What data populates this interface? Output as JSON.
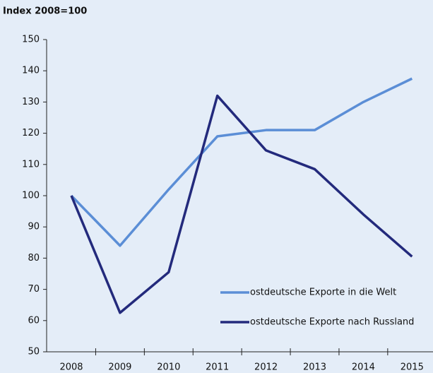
{
  "chart_data": {
    "type": "line",
    "y_axis_label": "Index 2008=100",
    "categories": [
      "2008",
      "2009",
      "2010",
      "2011",
      "2012",
      "2013",
      "2014",
      "2015"
    ],
    "series": [
      {
        "name": "ostdeutsche Exporte in die Welt",
        "color": "#5b8ed6",
        "values": [
          100,
          84,
          102,
          119,
          121,
          121,
          130,
          137.5
        ]
      },
      {
        "name": "ostdeutsche Exporte nach Russland",
        "color": "#232a7c",
        "values": [
          100,
          62.5,
          75.5,
          132,
          114.5,
          108.5,
          94,
          80.5
        ]
      }
    ],
    "ylim": [
      50,
      150
    ],
    "yticks": [
      50,
      60,
      70,
      80,
      90,
      100,
      110,
      120,
      130,
      140,
      150
    ],
    "grid": false,
    "legend": "lower right"
  }
}
